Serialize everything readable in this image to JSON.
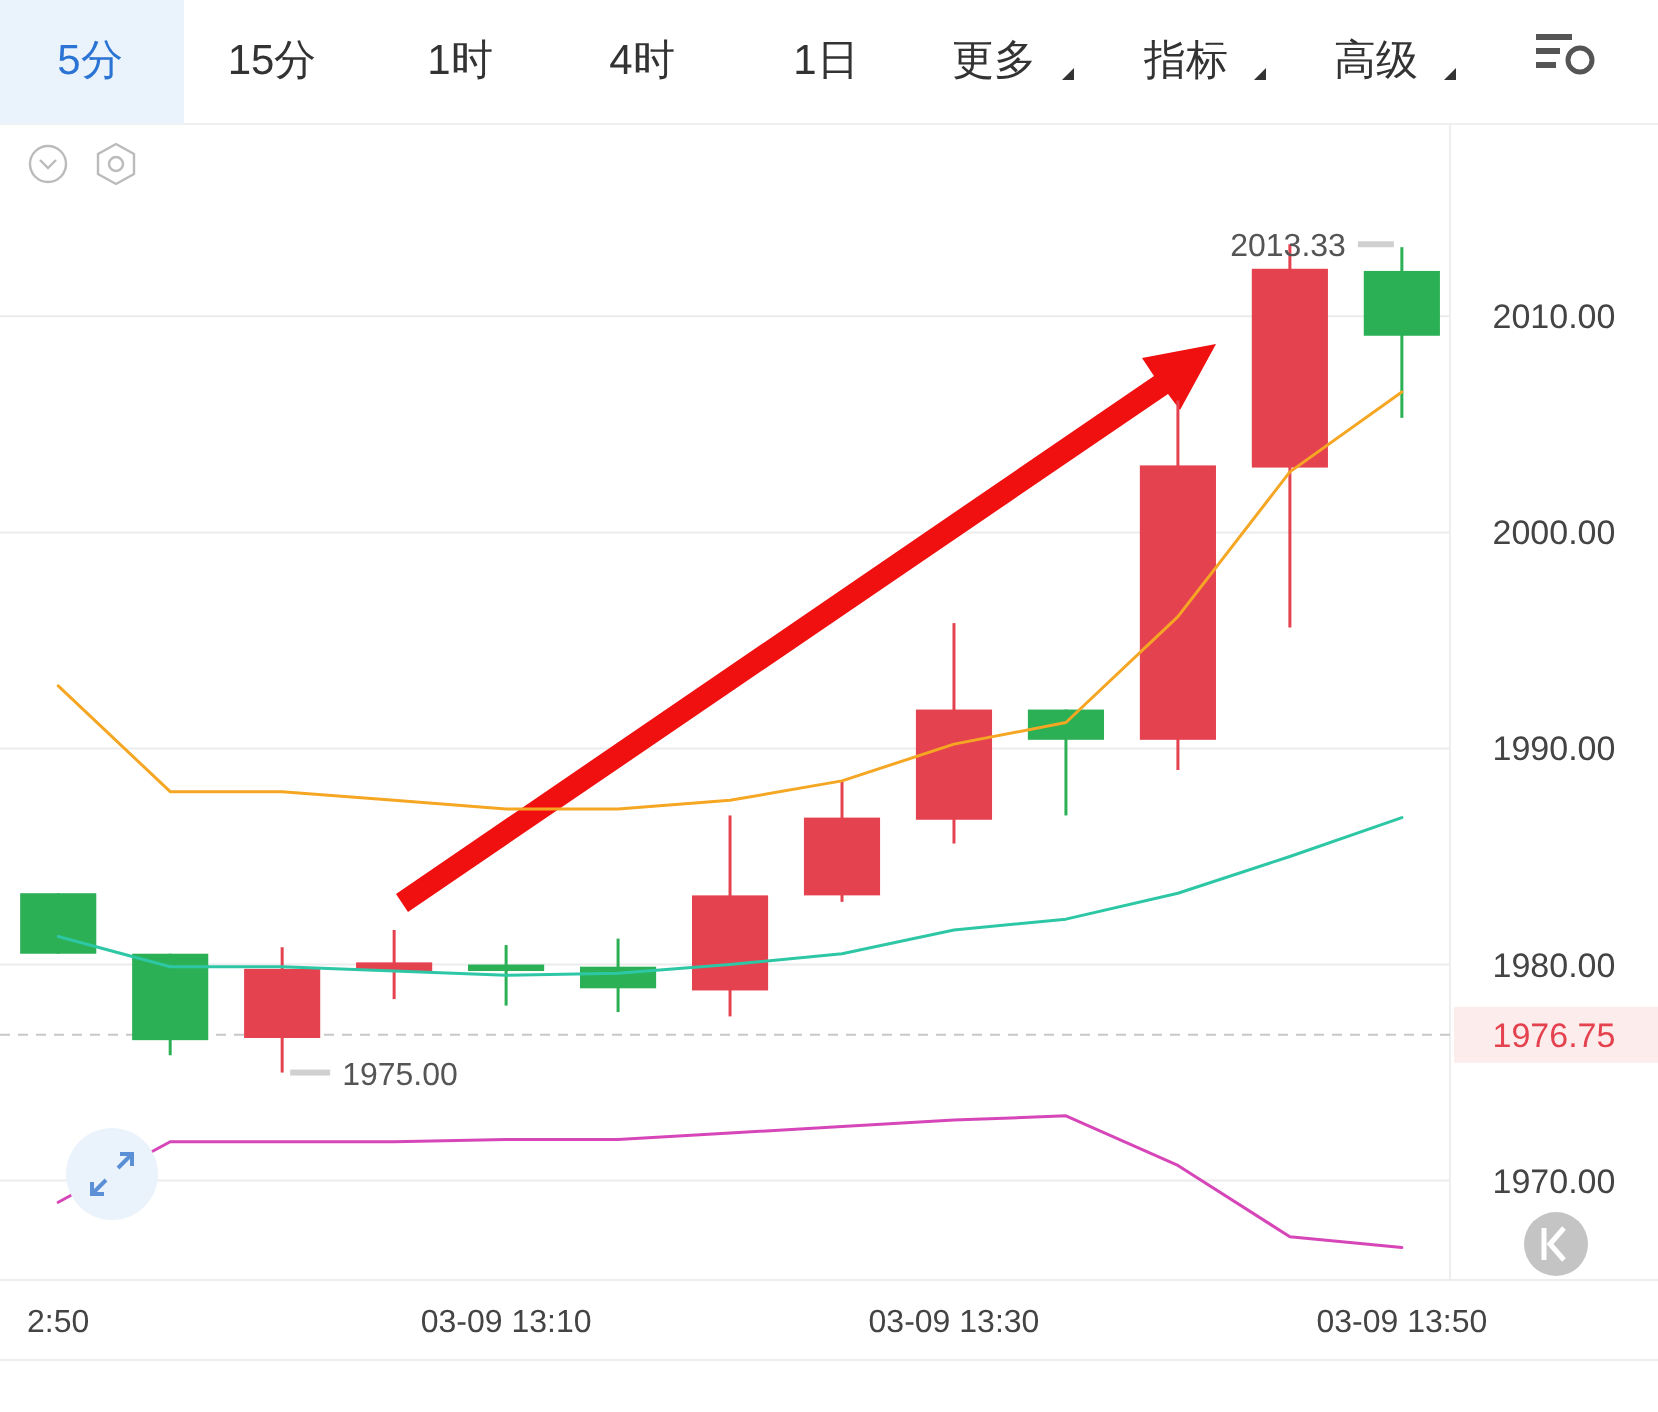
{
  "chart_data": {
    "type": "candlestick",
    "categories": [
      "2:50",
      null,
      null,
      null,
      "03-09 13:10",
      null,
      null,
      null,
      "03-09 13:30",
      null,
      null,
      null,
      "03-09 13:50"
    ],
    "ohlc": [
      [
        1983.3,
        1983.3,
        1980.5,
        1980.5
      ],
      [
        1980.5,
        1980.5,
        1975.8,
        1976.5
      ],
      [
        1976.6,
        1980.8,
        1975.0,
        1979.8
      ],
      [
        1979.7,
        1981.6,
        1978.4,
        1980.1
      ],
      [
        1980.0,
        1980.9,
        1978.1,
        1979.7
      ],
      [
        1979.9,
        1981.2,
        1977.8,
        1978.9
      ],
      [
        1978.8,
        1986.9,
        1977.6,
        1983.2
      ],
      [
        1983.2,
        1988.5,
        1982.9,
        1986.8
      ],
      [
        1986.7,
        1995.8,
        1985.6,
        1991.8
      ],
      [
        1991.8,
        1991.8,
        1986.9,
        1990.4
      ],
      [
        1990.4,
        2006.1,
        1989.0,
        2003.1
      ],
      [
        2003.0,
        2013.33,
        1995.6,
        2012.2
      ],
      [
        2012.1,
        2013.2,
        2005.3,
        2009.1
      ]
    ],
    "colors": [
      "#2bb055",
      "#2bb055",
      "#e5424f",
      "#e5424f",
      "#2bb055",
      "#2bb055",
      "#e5424f",
      "#e5424f",
      "#e5424f",
      "#2bb055",
      "#e5424f",
      "#e5424f",
      "#2bb055"
    ],
    "series": [
      {
        "type": "line",
        "color": "#f5a623",
        "values": [
          1992.9,
          1988.0,
          1988.0,
          1987.6,
          1987.2,
          1987.2,
          1987.6,
          1988.5,
          1990.2,
          1991.2,
          1996.1,
          2002.8,
          2006.5
        ]
      },
      {
        "type": "line",
        "color": "#2ec7a6",
        "values": [
          1981.3,
          1979.9,
          1979.9,
          1979.7,
          1979.5,
          1979.6,
          1980.0,
          1980.5,
          1981.6,
          1982.1,
          1983.3,
          1985.0,
          1986.8
        ]
      },
      {
        "type": "line",
        "color": "#d646b8",
        "values": [
          1969.0,
          1971.8,
          1971.8,
          1971.8,
          1971.9,
          1971.9,
          1972.2,
          1972.5,
          1972.8,
          1973.0,
          1970.7,
          1967.4,
          1966.9
        ]
      }
    ],
    "ylim": [
      1965.4,
      2018.9
    ],
    "yticks": [
      {
        "value": 1970,
        "label": "1970.00"
      },
      {
        "value": 1980,
        "label": "1980.00"
      },
      {
        "value": 1990,
        "label": "1990.00"
      },
      {
        "value": 2000,
        "label": "2000.00"
      },
      {
        "value": 2010,
        "label": "2010.00"
      }
    ],
    "grid": "y",
    "ref_lines": [
      {
        "axis": "y",
        "value": 1976.75,
        "label": "1976.75",
        "color": "#c8c8c8",
        "line_style": "dashed"
      }
    ],
    "annotations": [
      "5分",
      "15分",
      "1时",
      "4时",
      "1日",
      "更多",
      "指标",
      "高级",
      {
        "text": "2013.33",
        "y": 2013.33
      },
      "1975.00"
    ]
  }
}
